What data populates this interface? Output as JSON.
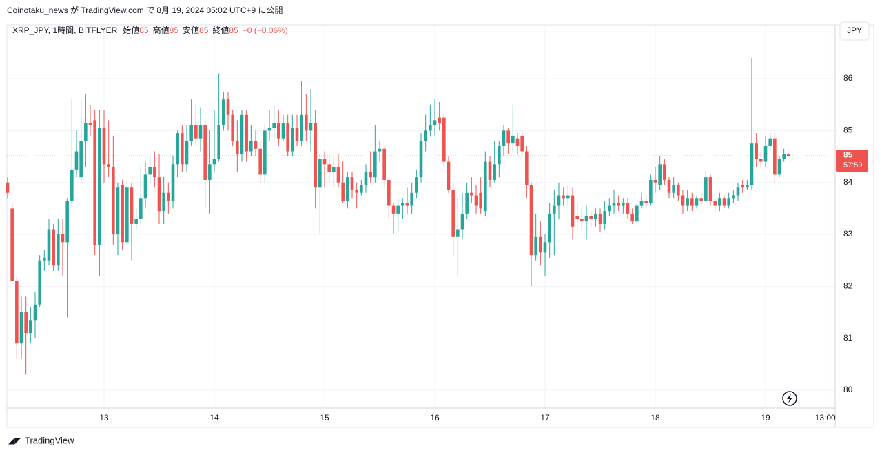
{
  "header": {
    "title": "Coinotaku_news が TradingView.com で 8月 19, 2024 05:02 UTC+9 に公開"
  },
  "legend": {
    "symbol": "XRP_JPY, 1時間, BITFLYER",
    "items": [
      {
        "label": "始値",
        "value": 85
      },
      {
        "label": "高値",
        "value": 85
      },
      {
        "label": "安値",
        "value": 85
      },
      {
        "label": "終値",
        "value": 85
      }
    ],
    "change": "−0 (−0.06%)"
  },
  "currency": "JPY",
  "footer": {
    "brand": "TradingView"
  },
  "chart_data": {
    "type": "candlestick",
    "up_color": "#26a69a",
    "down_color": "#ef5350",
    "xlim": [
      -0.15,
      180.15
    ],
    "xticks": [
      {
        "value": 21,
        "label": "13"
      },
      {
        "value": 45,
        "label": "14"
      },
      {
        "value": 69,
        "label": "15"
      },
      {
        "value": 93,
        "label": "16"
      },
      {
        "value": 117,
        "label": "17"
      },
      {
        "value": 141,
        "label": "18"
      },
      {
        "value": 165,
        "label": "19"
      },
      {
        "value": 178,
        "label": "13:00"
      }
    ],
    "ylim": [
      79.655,
      87.036
    ],
    "yticks": [
      80,
      81,
      82,
      83,
      84,
      85,
      86
    ],
    "grid": true,
    "last_price": {
      "value": 84.51,
      "label": "85",
      "countdown": "57:59"
    },
    "open": [
      84.0,
      83.5,
      82.1,
      80.9,
      81.5,
      81.1,
      81.35,
      81.65,
      82.5,
      82.5,
      83.1,
      82.4,
      83.0,
      82.85,
      83.65,
      84.25,
      84.1,
      84.8,
      85.15,
      85.2,
      82.8,
      85.05,
      84.35,
      84.3,
      83.0,
      83.95,
      82.85,
      83.9,
      83.2,
      83.3,
      83.7,
      84.15,
      84.3,
      84.1,
      83.45,
      83.8,
      83.65,
      84.35,
      84.95,
      84.35,
      84.8,
      85.1,
      84.85,
      85.1,
      84.05,
      84.35,
      84.45,
      85.1,
      85.6,
      85.3,
      84.8,
      84.55,
      85.3,
      84.6,
      84.8,
      84.65,
      84.15,
      85.0,
      85.05,
      85.15,
      84.85,
      85.15,
      84.6,
      85.05,
      84.8,
      85.3,
      85.0,
      85.15,
      83.9,
      84.45,
      84.35,
      84.2,
      84.3,
      84.0,
      83.65,
      84.1,
      83.85,
      83.8,
      83.95,
      84.2,
      84.1,
      84.6,
      84.65,
      84.05,
      83.55,
      83.4,
      83.55,
      83.6,
      83.55,
      83.8,
      84.1,
      84.8,
      85.0,
      85.1,
      85.25,
      85.25,
      84.4,
      83.85,
      82.95,
      83.1,
      83.4,
      83.8,
      83.75,
      83.8,
      83.45,
      84.4,
      84.05,
      84.35,
      84.7,
      85.0,
      84.75,
      84.85,
      84.9,
      84.6,
      83.95,
      82.6,
      82.95,
      82.65,
      82.85,
      83.4,
      83.55,
      83.75,
      83.7,
      83.75,
      83.35,
      83.3,
      83.25,
      83.35,
      83.3,
      83.4,
      83.2,
      83.45,
      83.55,
      83.6,
      83.55,
      83.6,
      83.4,
      83.25,
      83.55,
      83.65,
      83.6,
      84.05,
      83.95,
      84.35,
      84.05,
      83.8,
      83.95,
      83.75,
      83.55,
      83.7,
      83.55,
      83.7,
      83.65,
      84.1,
      83.65,
      83.55,
      83.7,
      83.55,
      83.7,
      83.75,
      83.95,
      83.9,
      83.95,
      84.75,
      84.45,
      84.4,
      84.7,
      84.85,
      84.15,
      84.45,
      84.54
    ],
    "high": [
      84.1,
      83.6,
      82.2,
      81.8,
      81.8,
      81.6,
      81.9,
      82.6,
      82.7,
      83.3,
      83.2,
      83.3,
      83.3,
      83.7,
      85.6,
      85.0,
      85.6,
      85.7,
      85.5,
      85.4,
      85.4,
      85.4,
      85.2,
      84.9,
      84.0,
      84.05,
      84.0,
      84.0,
      83.5,
      84.3,
      84.4,
      84.5,
      84.6,
      84.55,
      84.1,
      84.0,
      84.5,
      85.0,
      85.1,
      85.1,
      85.6,
      85.5,
      85.45,
      85.2,
      85.0,
      85.4,
      86.1,
      85.75,
      85.75,
      85.4,
      85.2,
      85.4,
      85.4,
      85.1,
      85.0,
      84.8,
      85.1,
      85.4,
      85.5,
      85.4,
      85.3,
      85.3,
      85.3,
      85.3,
      85.95,
      85.7,
      85.8,
      85.4,
      84.55,
      84.6,
      84.5,
      84.5,
      84.55,
      84.4,
      84.2,
      84.2,
      84.0,
      84.05,
      84.35,
      84.6,
      85.1,
      84.8,
      84.7,
      84.1,
      83.6,
      83.7,
      83.7,
      83.9,
      84.0,
      84.25,
      84.95,
      85.3,
      85.5,
      85.6,
      85.55,
      85.3,
      84.5,
      84.0,
      83.7,
      83.8,
      84.0,
      84.1,
      83.95,
      84.1,
      84.6,
      84.5,
      84.8,
      84.8,
      85.1,
      85.05,
      85.5,
      84.95,
      85.0,
      84.7,
      84.0,
      83.4,
      83.25,
      83.0,
      83.6,
      83.85,
      84.0,
      83.9,
      83.95,
      83.9,
      83.6,
      83.5,
      83.55,
      83.45,
      83.5,
      83.5,
      83.65,
      83.7,
      83.85,
      83.75,
      83.7,
      83.7,
      83.5,
      83.6,
      83.8,
      83.75,
      84.15,
      84.3,
      84.5,
      84.45,
      84.1,
      84.1,
      84.0,
      83.85,
      83.85,
      83.8,
      83.75,
      83.8,
      84.25,
      84.15,
      83.7,
      83.8,
      83.75,
      83.8,
      83.85,
      84.0,
      84.05,
      84.05,
      86.4,
      84.95,
      84.6,
      84.9,
      84.95,
      84.95,
      84.5,
      84.65,
      84.56
    ],
    "low": [
      83.7,
      82.1,
      80.6,
      80.6,
      80.3,
      80.9,
      81.0,
      81.6,
      82.3,
      82.4,
      82.3,
      82.3,
      82.2,
      81.4,
      83.5,
      84.1,
      84.0,
      84.3,
      84.9,
      82.6,
      82.2,
      84.0,
      84.1,
      82.8,
      82.6,
      82.7,
      82.8,
      82.5,
      83.1,
      83.2,
      83.5,
      84.0,
      83.9,
      83.2,
      83.2,
      83.4,
      83.5,
      84.1,
      84.2,
      84.2,
      84.7,
      84.7,
      84.6,
      83.5,
      83.4,
      84.2,
      84.4,
      85.0,
      85.0,
      84.7,
      84.2,
      84.4,
      84.4,
      84.5,
      84.5,
      84.0,
      84.0,
      84.8,
      84.8,
      84.7,
      84.8,
      84.5,
      84.5,
      84.7,
      84.7,
      84.8,
      84.6,
      83.5,
      83.0,
      83.9,
      84.0,
      83.9,
      83.9,
      83.6,
      83.5,
      83.7,
      83.5,
      83.75,
      83.8,
      84.0,
      84.0,
      84.4,
      83.9,
      83.3,
      83.0,
      83.05,
      83.3,
      83.4,
      83.4,
      83.7,
      84.0,
      84.6,
      84.9,
      84.9,
      85.0,
      84.3,
      83.8,
      82.6,
      82.2,
      82.9,
      83.3,
      83.6,
      83.4,
      83.4,
      83.35,
      83.9,
      84.0,
      84.1,
      84.5,
      84.55,
      84.6,
      84.55,
      84.5,
      83.7,
      82.0,
      82.5,
      82.4,
      82.2,
      82.55,
      82.6,
      83.3,
      83.55,
      83.55,
      82.9,
      83.15,
      83.1,
      82.9,
      83.15,
      83.15,
      83.05,
      83.1,
      83.35,
      83.4,
      83.45,
      83.4,
      83.3,
      83.2,
      83.2,
      83.5,
      83.5,
      83.55,
      83.8,
      83.85,
      83.95,
      83.7,
      83.7,
      83.65,
      83.4,
      83.45,
      83.45,
      83.5,
      83.55,
      83.6,
      83.55,
      83.45,
      83.45,
      83.5,
      83.5,
      83.6,
      83.65,
      83.8,
      83.85,
      83.85,
      84.3,
      84.3,
      84.3,
      84.6,
      84.0,
      84.1,
      84.4,
      84.5
    ],
    "close": [
      83.8,
      82.1,
      80.9,
      81.5,
      81.1,
      81.35,
      81.65,
      82.5,
      82.55,
      83.1,
      82.4,
      83.0,
      82.85,
      83.65,
      84.25,
      84.6,
      84.8,
      85.15,
      85.1,
      82.8,
      85.05,
      84.35,
      84.3,
      83.0,
      83.9,
      82.85,
      83.9,
      83.2,
      83.3,
      83.7,
      84.15,
      84.3,
      84.1,
      83.45,
      83.8,
      83.65,
      84.35,
      84.95,
      84.35,
      84.8,
      85.1,
      84.85,
      85.1,
      84.05,
      84.35,
      84.45,
      85.1,
      85.6,
      85.3,
      84.8,
      84.55,
      85.3,
      84.6,
      84.8,
      84.65,
      84.15,
      85.0,
      85.05,
      85.15,
      84.85,
      85.15,
      84.6,
      85.05,
      84.8,
      85.3,
      85.0,
      85.15,
      83.9,
      84.45,
      84.35,
      84.2,
      84.3,
      84.0,
      83.65,
      84.1,
      83.85,
      83.8,
      83.95,
      84.2,
      84.1,
      84.6,
      84.65,
      84.05,
      83.55,
      83.4,
      83.55,
      83.6,
      83.55,
      83.8,
      84.1,
      84.8,
      85.0,
      85.1,
      85.2,
      85.15,
      84.4,
      83.85,
      82.95,
      83.1,
      83.4,
      83.8,
      83.75,
      83.55,
      83.5,
      84.4,
      84.05,
      84.35,
      84.7,
      85.0,
      84.75,
      84.9,
      84.7,
      84.6,
      83.95,
      82.6,
      82.95,
      82.65,
      82.85,
      83.4,
      83.55,
      83.75,
      83.7,
      83.75,
      83.15,
      83.3,
      83.25,
      83.35,
      83.3,
      83.4,
      83.2,
      83.45,
      83.55,
      83.6,
      83.55,
      83.6,
      83.4,
      83.25,
      83.55,
      83.65,
      83.6,
      84.05,
      84.0,
      84.35,
      84.05,
      83.8,
      83.95,
      83.75,
      83.55,
      83.7,
      83.55,
      83.7,
      83.65,
      84.1,
      83.65,
      83.55,
      83.7,
      83.55,
      83.7,
      83.75,
      83.9,
      83.9,
      83.95,
      84.75,
      84.45,
      84.4,
      84.7,
      84.85,
      84.15,
      84.45,
      84.55,
      84.51
    ]
  }
}
